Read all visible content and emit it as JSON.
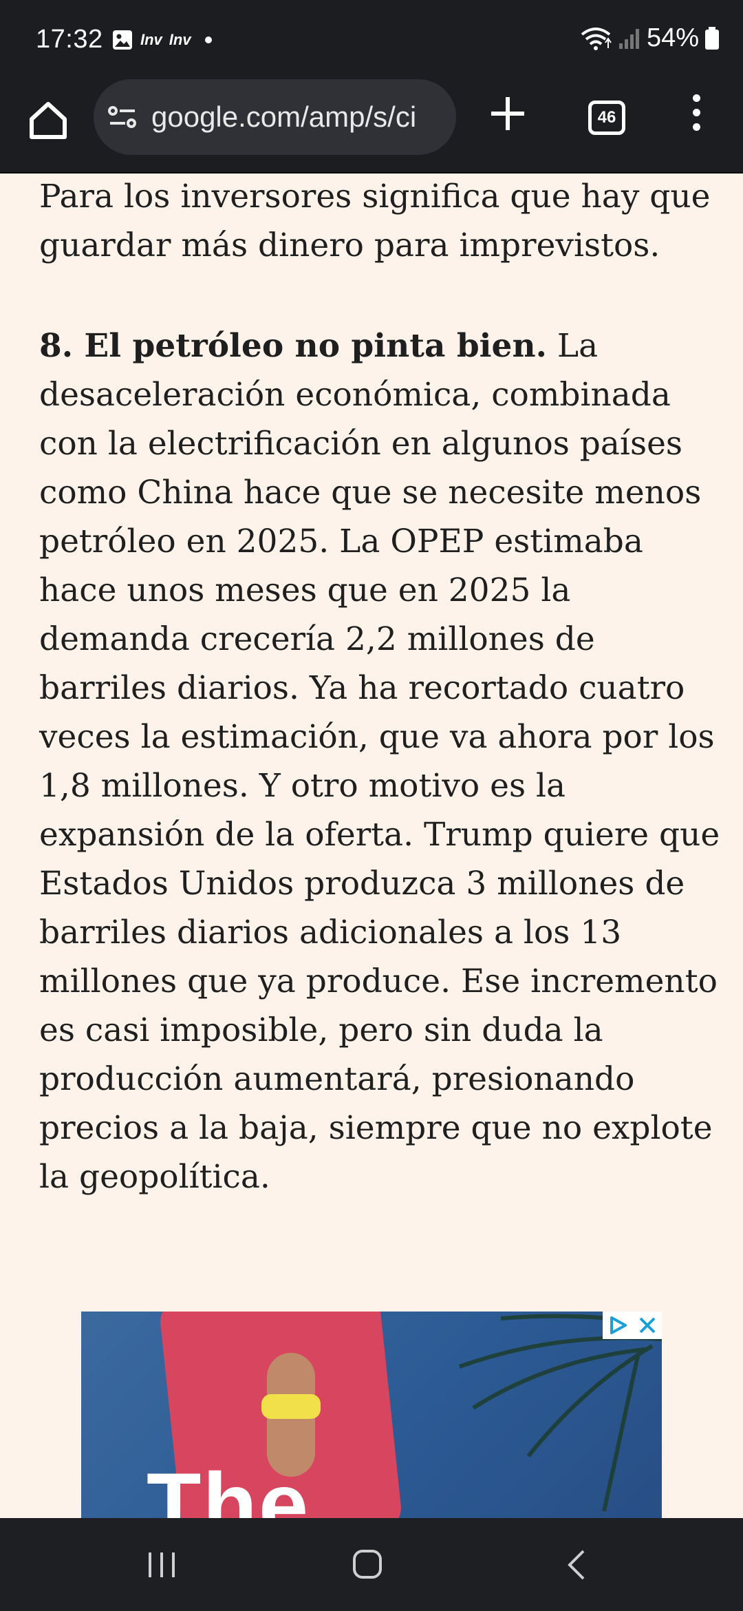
{
  "status_bar": {
    "time": "17:32",
    "notif_1": "Inv",
    "notif_2": "Inv",
    "battery": "54%"
  },
  "browser": {
    "url": "google.com/amp/s/ci",
    "tab_count": "46"
  },
  "article": {
    "p1": "Para los inversores significa que hay que guardar más dinero para imprevistos.",
    "p2_bold": "8. El petróleo no pinta bien.",
    "p2_text": " La desaceleración económica, combinada con la electrificación en algunos países como China hace que se necesite menos petróleo en 2025. La OPEP estimaba hace unos meses que en 2025 la demanda crecería 2,2 millones de barriles diarios. Ya ha recortado cuatro veces la estimación, que va ahora por los 1,8 millones. Y otro motivo es la expansión de la oferta. Trump quiere que Estados Unidos produzca 3 millones de barriles diarios adicionales a los 13 millones que ya produce. Ese incremento es casi imposible, pero sin duda la producción aumentará, presionando precios a la baja, siempre que no explote la geopolítica."
  },
  "ad": {
    "headline": "The"
  },
  "colors": {
    "page_bg": "#fdf3ea",
    "chrome_bg": "#1c1d21",
    "text": "#1f1f1f"
  }
}
